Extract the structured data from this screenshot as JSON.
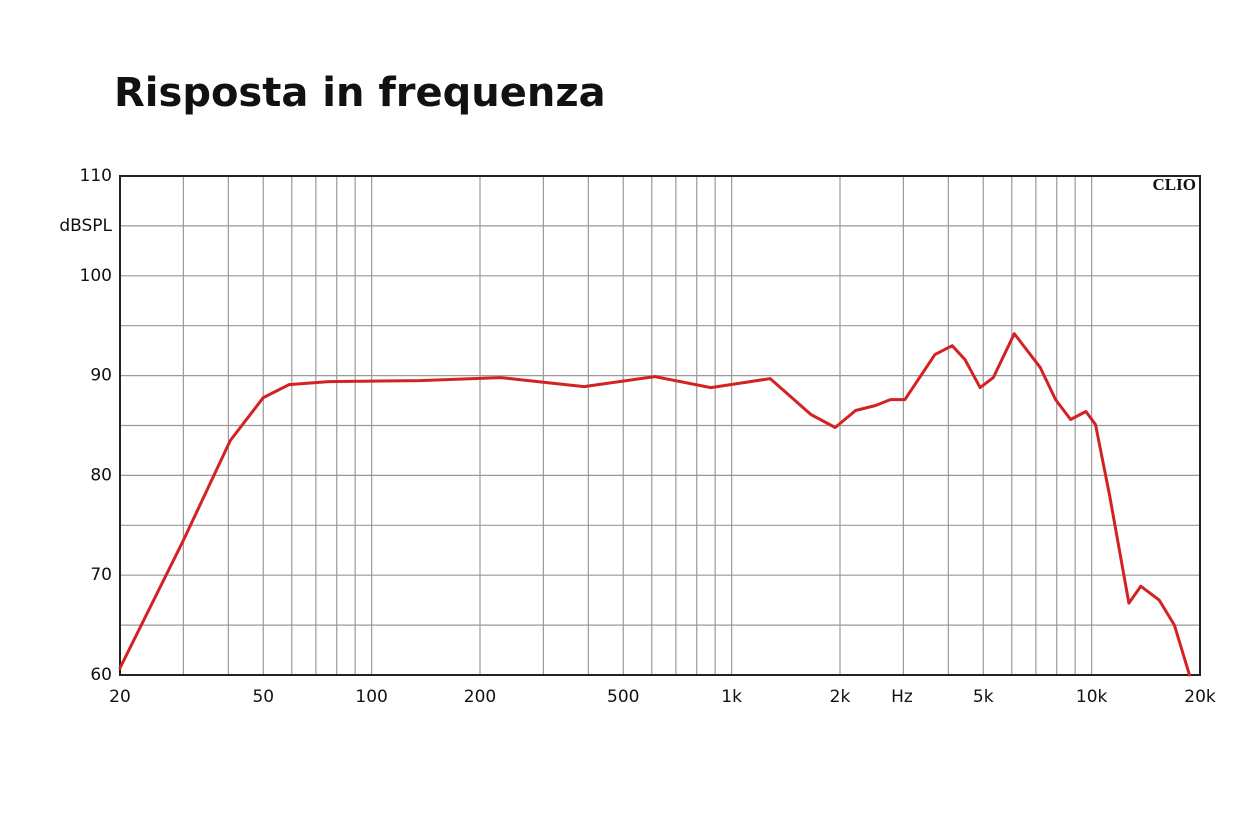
{
  "chart_data": {
    "type": "line",
    "title": "Risposta in frequenza",
    "x_label": "Hz",
    "y_label": "dBSPL",
    "annotation": "CLIO",
    "log_x": true,
    "grid": true,
    "color": "#d42222",
    "x": [
      20,
      30,
      40.5,
      50,
      59,
      76,
      136,
      228,
      389,
      612,
      875,
      1280,
      1660,
      1940,
      2210,
      2510,
      2760,
      3030,
      3670,
      4100,
      4450,
      4900,
      5330,
      6100,
      7200,
      7940,
      8740,
      9640,
      10250,
      11220,
      12690,
      13700,
      15410,
      16980,
      18700
    ],
    "values": [
      60.7,
      73.5,
      83.5,
      87.8,
      89.1,
      89.4,
      89.5,
      89.8,
      88.9,
      89.9,
      88.8,
      89.7,
      86.1,
      84.8,
      86.5,
      87.0,
      87.6,
      87.6,
      92.1,
      93.0,
      91.6,
      88.8,
      89.8,
      94.2,
      90.8,
      87.6,
      85.6,
      86.4,
      85.1,
      78.0,
      67.2,
      68.9,
      67.5,
      65.0,
      60.0
    ],
    "xlim": [
      20,
      20000
    ],
    "ylim": [
      60,
      110
    ],
    "xticks": [
      20,
      50,
      100,
      200,
      500,
      {
        "value": 1000,
        "label": "1k"
      },
      {
        "value": 2000,
        "label": "2k"
      },
      {
        "value": 5000,
        "label": "5k"
      },
      {
        "value": 10000,
        "label": "10k"
      },
      {
        "value": 20000,
        "label": "20k"
      }
    ],
    "xgrid": [
      30,
      40,
      60,
      70,
      80,
      90,
      300,
      400,
      600,
      700,
      800,
      900,
      3000,
      4000,
      6000,
      7000,
      8000,
      9000
    ],
    "yticks": [
      60,
      70,
      80,
      90,
      100,
      110
    ],
    "ygrid": [
      65,
      75,
      85,
      95,
      105
    ]
  }
}
